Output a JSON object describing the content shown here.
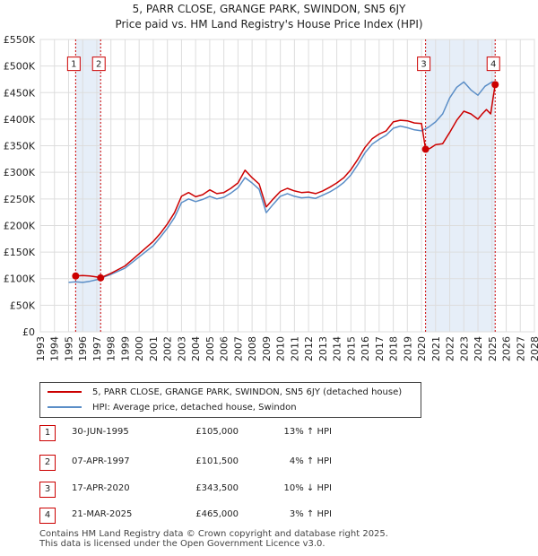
{
  "chart_data": {
    "type": "line",
    "title": "5, PARR CLOSE, GRANGE PARK, SWINDON, SN5 6JY",
    "subtitle": "Price paid vs. HM Land Registry's House Price Index (HPI)",
    "xlim": [
      1993,
      2028
    ],
    "ylim": [
      0,
      550000
    ],
    "x_ticks": [
      1993,
      1994,
      1995,
      1996,
      1997,
      1998,
      1999,
      2000,
      2001,
      2002,
      2003,
      2004,
      2005,
      2006,
      2007,
      2008,
      2009,
      2010,
      2011,
      2012,
      2013,
      2014,
      2015,
      2016,
      2017,
      2018,
      2019,
      2020,
      2021,
      2022,
      2023,
      2024,
      2025,
      2026,
      2027,
      2028
    ],
    "y_ticks": [
      {
        "value": 0,
        "label": "£0"
      },
      {
        "value": 50000,
        "label": "£50K"
      },
      {
        "value": 100000,
        "label": "£100K"
      },
      {
        "value": 150000,
        "label": "£150K"
      },
      {
        "value": 200000,
        "label": "£200K"
      },
      {
        "value": 250000,
        "label": "£250K"
      },
      {
        "value": 300000,
        "label": "£300K"
      },
      {
        "value": 350000,
        "label": "£350K"
      },
      {
        "value": 400000,
        "label": "£400K"
      },
      {
        "value": 450000,
        "label": "£450K"
      },
      {
        "value": 500000,
        "label": "£500K"
      },
      {
        "value": 550000,
        "label": "£550K"
      }
    ],
    "grid": true,
    "shaded_ranges": [
      [
        1995.5,
        1997.27
      ],
      [
        2020.29,
        2025.22
      ]
    ],
    "series": [
      {
        "name": "5, PARR CLOSE, GRANGE PARK, SWINDON, SN5 6JY (detached house)",
        "color": "#cc0000",
        "points": [
          [
            1995.5,
            105000
          ],
          [
            1996.0,
            106000
          ],
          [
            1996.5,
            105000
          ],
          [
            1997.0,
            103000
          ],
          [
            1997.27,
            101500
          ],
          [
            1998.0,
            110000
          ],
          [
            1999.0,
            124000
          ],
          [
            2000.0,
            147000
          ],
          [
            2001.0,
            170000
          ],
          [
            2001.5,
            185000
          ],
          [
            2002.0,
            203000
          ],
          [
            2002.5,
            224000
          ],
          [
            2003.0,
            255000
          ],
          [
            2003.5,
            262000
          ],
          [
            2004.0,
            254000
          ],
          [
            2004.5,
            258000
          ],
          [
            2005.0,
            267000
          ],
          [
            2005.5,
            260000
          ],
          [
            2006.0,
            262000
          ],
          [
            2006.5,
            270000
          ],
          [
            2007.0,
            280000
          ],
          [
            2007.5,
            304000
          ],
          [
            2008.0,
            290000
          ],
          [
            2008.5,
            278000
          ],
          [
            2009.0,
            235000
          ],
          [
            2009.5,
            250000
          ],
          [
            2010.0,
            264000
          ],
          [
            2010.5,
            270000
          ],
          [
            2011.0,
            265000
          ],
          [
            2011.5,
            262000
          ],
          [
            2012.0,
            263000
          ],
          [
            2012.5,
            260000
          ],
          [
            2013.0,
            265000
          ],
          [
            2013.5,
            272000
          ],
          [
            2014.0,
            280000
          ],
          [
            2014.5,
            290000
          ],
          [
            2015.0,
            305000
          ],
          [
            2015.5,
            325000
          ],
          [
            2016.0,
            347000
          ],
          [
            2016.5,
            363000
          ],
          [
            2017.0,
            372000
          ],
          [
            2017.5,
            378000
          ],
          [
            2018.0,
            395000
          ],
          [
            2018.5,
            398000
          ],
          [
            2019.0,
            397000
          ],
          [
            2019.5,
            393000
          ],
          [
            2020.0,
            392000
          ],
          [
            2020.29,
            343500
          ],
          [
            2020.6,
            345000
          ],
          [
            2021.0,
            352000
          ],
          [
            2021.5,
            354000
          ],
          [
            2022.0,
            375000
          ],
          [
            2022.5,
            398000
          ],
          [
            2023.0,
            415000
          ],
          [
            2023.5,
            410000
          ],
          [
            2024.0,
            400000
          ],
          [
            2024.3,
            410000
          ],
          [
            2024.6,
            418000
          ],
          [
            2024.9,
            410000
          ],
          [
            2025.22,
            465000
          ],
          [
            2025.4,
            470000
          ]
        ]
      },
      {
        "name": "HPI: Average price, detached house, Swindon",
        "color": "#5b8ec7",
        "points": [
          [
            1995.0,
            93000
          ],
          [
            1995.5,
            94000
          ],
          [
            1996.0,
            93000
          ],
          [
            1996.5,
            95000
          ],
          [
            1997.0,
            98000
          ],
          [
            1997.5,
            103000
          ],
          [
            1998.0,
            108000
          ],
          [
            1999.0,
            120000
          ],
          [
            2000.0,
            141000
          ],
          [
            2001.0,
            162000
          ],
          [
            2001.5,
            178000
          ],
          [
            2002.0,
            195000
          ],
          [
            2002.5,
            215000
          ],
          [
            2003.0,
            243000
          ],
          [
            2003.5,
            250000
          ],
          [
            2004.0,
            245000
          ],
          [
            2004.5,
            249000
          ],
          [
            2005.0,
            255000
          ],
          [
            2005.5,
            250000
          ],
          [
            2006.0,
            253000
          ],
          [
            2006.5,
            261000
          ],
          [
            2007.0,
            271000
          ],
          [
            2007.5,
            290000
          ],
          [
            2008.0,
            280000
          ],
          [
            2008.5,
            268000
          ],
          [
            2009.0,
            224000
          ],
          [
            2009.5,
            240000
          ],
          [
            2010.0,
            255000
          ],
          [
            2010.5,
            260000
          ],
          [
            2011.0,
            255000
          ],
          [
            2011.5,
            252000
          ],
          [
            2012.0,
            253000
          ],
          [
            2012.5,
            251000
          ],
          [
            2013.0,
            257000
          ],
          [
            2013.5,
            263000
          ],
          [
            2014.0,
            271000
          ],
          [
            2014.5,
            281000
          ],
          [
            2015.0,
            295000
          ],
          [
            2015.5,
            315000
          ],
          [
            2016.0,
            337000
          ],
          [
            2016.5,
            353000
          ],
          [
            2017.0,
            362000
          ],
          [
            2017.5,
            370000
          ],
          [
            2018.0,
            383000
          ],
          [
            2018.5,
            387000
          ],
          [
            2019.0,
            384000
          ],
          [
            2019.5,
            380000
          ],
          [
            2020.0,
            378000
          ],
          [
            2020.5,
            385000
          ],
          [
            2021.0,
            395000
          ],
          [
            2021.5,
            410000
          ],
          [
            2022.0,
            440000
          ],
          [
            2022.5,
            460000
          ],
          [
            2023.0,
            470000
          ],
          [
            2023.5,
            455000
          ],
          [
            2024.0,
            445000
          ],
          [
            2024.5,
            462000
          ],
          [
            2025.0,
            470000
          ],
          [
            2025.4,
            468000
          ]
        ]
      }
    ],
    "markers": [
      {
        "label": "1",
        "x": 1995.5,
        "y": 105000
      },
      {
        "label": "2",
        "x": 1997.27,
        "y": 101500
      },
      {
        "label": "3",
        "x": 2020.29,
        "y": 343500
      },
      {
        "label": "4",
        "x": 2025.22,
        "y": 465000
      }
    ]
  },
  "legend": {
    "property_label": "5, PARR CLOSE, GRANGE PARK, SWINDON, SN5 6JY (detached house)",
    "hpi_label": "HPI: Average price, detached house, Swindon",
    "property_color": "#cc0000",
    "hpi_color": "#5b8ec7"
  },
  "sales": [
    {
      "num": "1",
      "date": "30-JUN-1995",
      "price": "£105,000",
      "hpi": "13% ↑ HPI"
    },
    {
      "num": "2",
      "date": "07-APR-1997",
      "price": "£101,500",
      "hpi": "4% ↑ HPI"
    },
    {
      "num": "3",
      "date": "17-APR-2020",
      "price": "£343,500",
      "hpi": "10% ↓ HPI"
    },
    {
      "num": "4",
      "date": "21-MAR-2025",
      "price": "£465,000",
      "hpi": "3% ↑ HPI"
    }
  ],
  "footer": {
    "line1": "Contains HM Land Registry data © Crown copyright and database right 2025.",
    "line2": "This data is licensed under the Open Government Licence v3.0."
  }
}
